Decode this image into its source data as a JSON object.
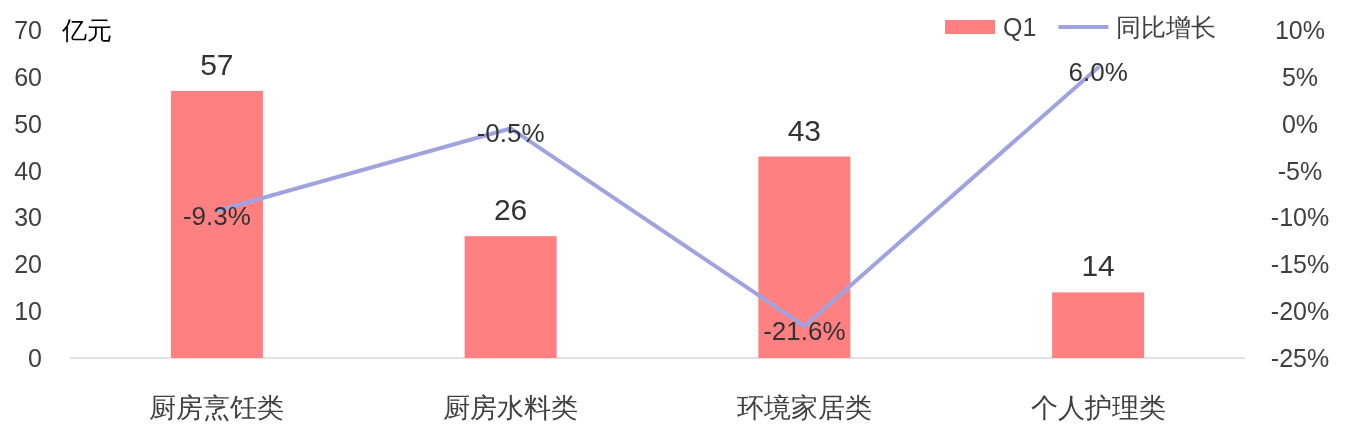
{
  "chart_data": {
    "type": "bar",
    "ylabel": "亿元",
    "categories": [
      "厨房烹饪类",
      "厨房水料类",
      "环境家居类",
      "个人护理类"
    ],
    "series": [
      {
        "name": "Q1",
        "color": "#ff8080",
        "values": [
          57,
          26,
          43,
          14
        ],
        "value_labels": [
          "57",
          "26",
          "43",
          "14"
        ]
      },
      {
        "name": "同比增长",
        "type": "line",
        "axis": "y2",
        "color": "#a0a3e0",
        "values": [
          -9.3,
          -0.5,
          -21.6,
          6.0
        ],
        "value_labels": [
          "-9.3%",
          "-0.5%",
          "-21.6%",
          "6.0%"
        ]
      }
    ],
    "ylim": [
      0,
      70
    ],
    "yticks": [
      0,
      10,
      20,
      30,
      40,
      50,
      60,
      70
    ],
    "y2lim": [
      -25,
      10
    ],
    "y2ticks": [
      {
        "value": -25,
        "label": "-25%"
      },
      {
        "value": -20,
        "label": "-20%"
      },
      {
        "value": -15,
        "label": "-15%"
      },
      {
        "value": -10,
        "label": "-10%"
      },
      {
        "value": -5,
        "label": "-5%"
      },
      {
        "value": 0,
        "label": "0%"
      },
      {
        "value": 5,
        "label": "5%"
      },
      {
        "value": 10,
        "label": "10%"
      }
    ],
    "legend": "top right"
  }
}
